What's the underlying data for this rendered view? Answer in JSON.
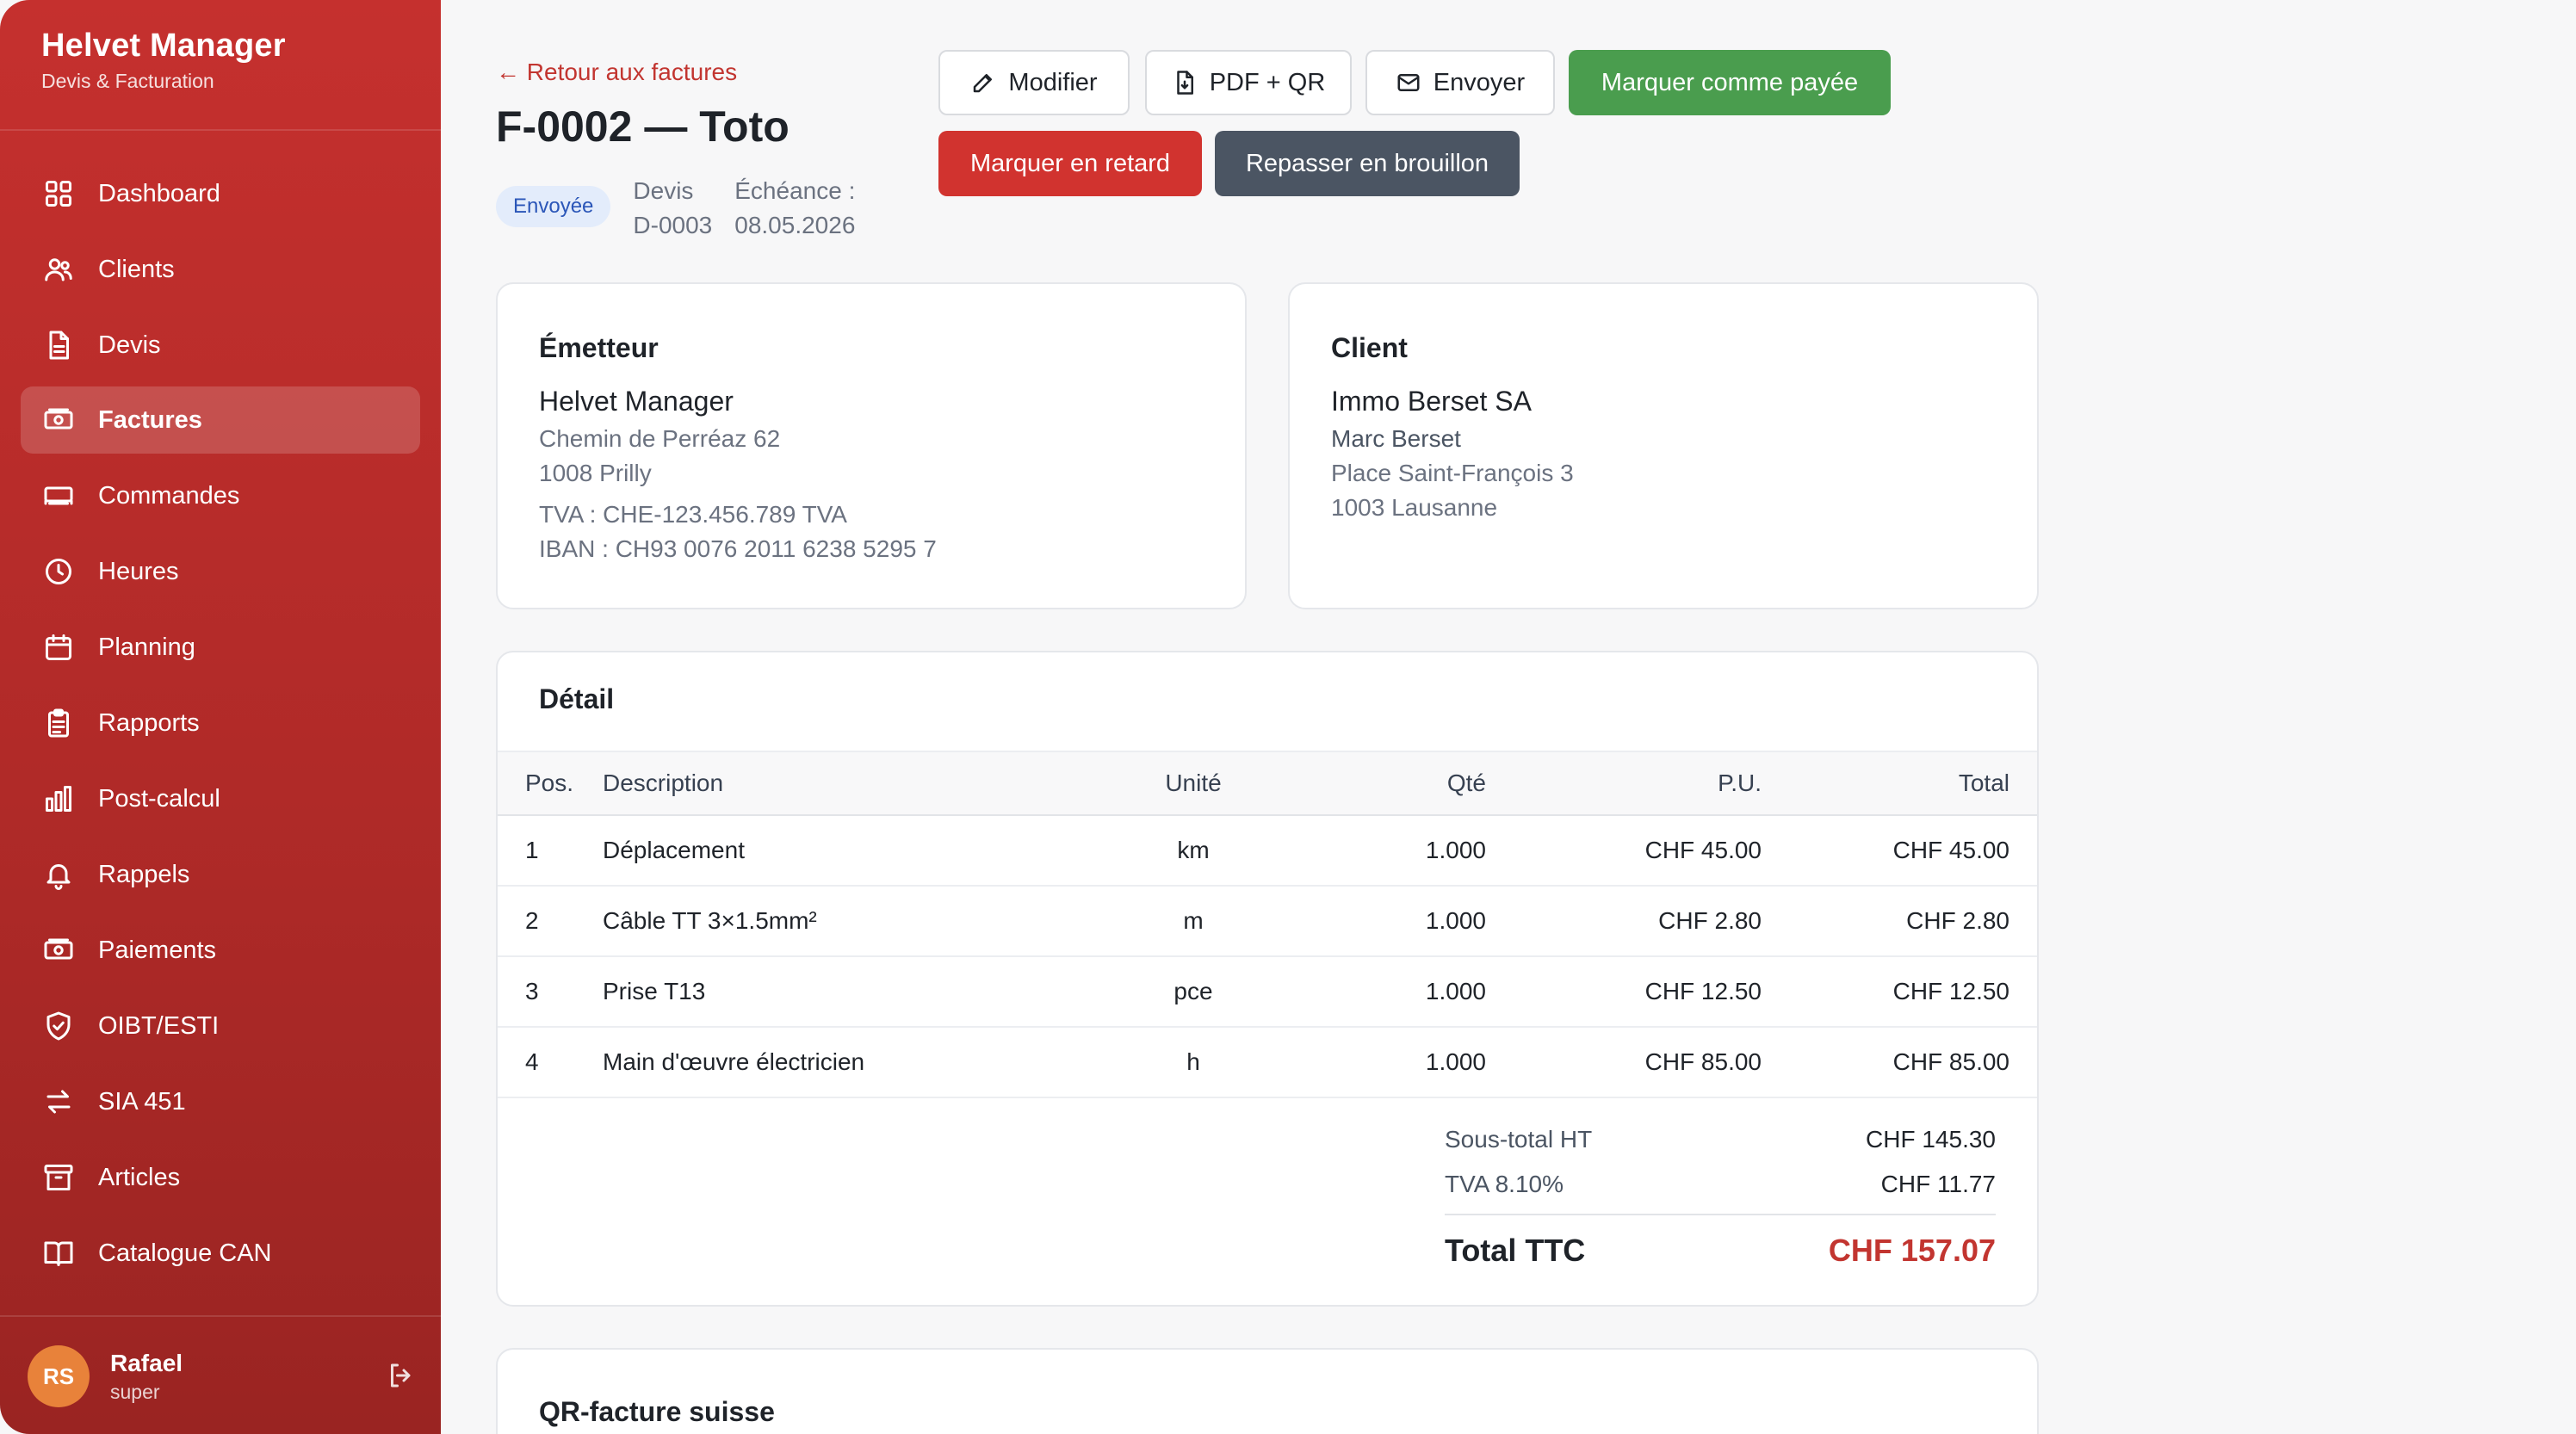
{
  "brand": {
    "title": "Helvet Manager",
    "subtitle": "Devis & Facturation"
  },
  "sidebar": {
    "items": [
      {
        "label": "Dashboard",
        "icon": "grid-icon"
      },
      {
        "label": "Clients",
        "icon": "users-icon"
      },
      {
        "label": "Devis",
        "icon": "file-icon"
      },
      {
        "label": "Factures",
        "icon": "banknote-icon",
        "active": true
      },
      {
        "label": "Commandes",
        "icon": "truck-icon"
      },
      {
        "label": "Heures",
        "icon": "clock-icon"
      },
      {
        "label": "Planning",
        "icon": "calendar-icon"
      },
      {
        "label": "Rapports",
        "icon": "clipboard-icon"
      },
      {
        "label": "Post-calcul",
        "icon": "bar-chart-icon"
      },
      {
        "label": "Rappels",
        "icon": "bell-icon"
      },
      {
        "label": "Paiements",
        "icon": "banknote-icon"
      },
      {
        "label": "OIBT/ESTI",
        "icon": "shield-check-icon"
      },
      {
        "label": "SIA 451",
        "icon": "arrows-swap-icon"
      },
      {
        "label": "Articles",
        "icon": "archive-icon"
      },
      {
        "label": "Catalogue CAN",
        "icon": "book-icon"
      }
    ]
  },
  "user": {
    "initials": "RS",
    "name": "Rafael",
    "role": "super"
  },
  "header": {
    "back_label": "← Retour aux factures",
    "title": "F-0002 — Toto",
    "status_badge": "Envoyée",
    "quote_label": "Devis",
    "quote_value": "D-0003",
    "due_label": "Échéance :",
    "due_value": "08.05.2026"
  },
  "actions": {
    "edit": "Modifier",
    "pdf": "PDF + QR",
    "send": "Envoyer",
    "mark_paid": "Marquer comme payée",
    "mark_late": "Marquer en retard",
    "back_draft": "Repasser en brouillon"
  },
  "issuer": {
    "title": "Émetteur",
    "name": "Helvet Manager",
    "street": "Chemin de Perréaz 62",
    "city": "1008 Prilly",
    "vat": "TVA : CHE-123.456.789 TVA",
    "iban": "IBAN : CH93 0076 2011 6238 5295 7"
  },
  "client": {
    "title": "Client",
    "name": "Immo Berset SA",
    "contact": "Marc Berset",
    "street": "Place Saint-François 3",
    "city": "1003 Lausanne"
  },
  "detail": {
    "title": "Détail",
    "columns": {
      "pos": "Pos.",
      "desc": "Description",
      "unit": "Unité",
      "qty": "Qté",
      "pu": "P.U.",
      "total": "Total"
    },
    "rows": [
      {
        "pos": "1",
        "desc": "Déplacement",
        "unit": "km",
        "qty": "1.000",
        "pu": "CHF 45.00",
        "total": "CHF 45.00"
      },
      {
        "pos": "2",
        "desc": "Câble TT 3×1.5mm²",
        "unit": "m",
        "qty": "1.000",
        "pu": "CHF 2.80",
        "total": "CHF 2.80"
      },
      {
        "pos": "3",
        "desc": "Prise T13",
        "unit": "pce",
        "qty": "1.000",
        "pu": "CHF 12.50",
        "total": "CHF 12.50"
      },
      {
        "pos": "4",
        "desc": "Main d'œuvre électricien",
        "unit": "h",
        "qty": "1.000",
        "pu": "CHF 85.00",
        "total": "CHF 85.00"
      }
    ],
    "subtotal_label": "Sous-total HT",
    "subtotal_value": "CHF 145.30",
    "vat_label": "TVA 8.10%",
    "vat_value": "CHF 11.77",
    "total_label": "Total TTC",
    "total_value": "CHF 157.07"
  },
  "qr": {
    "title": "QR-facture suisse"
  },
  "colors": {
    "brand": "#c5302e",
    "accent_green": "#4a9d4e",
    "accent_red": "#d1332f",
    "badge_bg": "#e3ecfb"
  }
}
